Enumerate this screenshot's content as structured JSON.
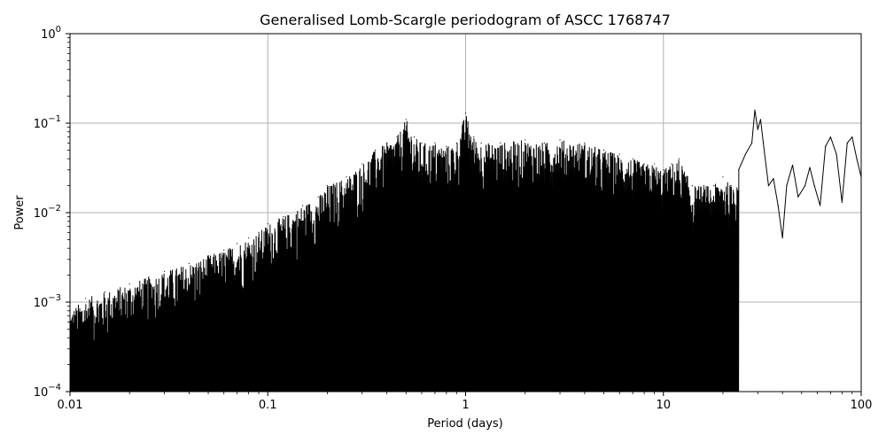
{
  "chart_data": {
    "type": "line",
    "title": "Generalised Lomb-Scargle periodogram of ASCC 1768747",
    "xlabel": "Period (days)",
    "ylabel": "Power",
    "xscale": "log",
    "yscale": "log",
    "xlim": [
      0.01,
      100
    ],
    "ylim": [
      0.0001,
      1
    ],
    "grid": true,
    "line_color": "#000000",
    "grid_color": "#b0b0b0",
    "x_tick_labels": [
      "0.01",
      "0.1",
      "1",
      "10",
      "100"
    ],
    "y_tick_labels": [
      {
        "base": "10",
        "exp": "−4"
      },
      {
        "base": "10",
        "exp": "−3"
      },
      {
        "base": "10",
        "exp": "−2"
      },
      {
        "base": "10",
        "exp": "−1"
      },
      {
        "base": "10",
        "exp": "0"
      }
    ],
    "series": [
      {
        "points": [
          [
            0.01,
            0.0008
          ],
          [
            0.012,
            0.0011
          ],
          [
            0.015,
            0.0013
          ],
          [
            0.02,
            0.0016
          ],
          [
            0.025,
            0.0019
          ],
          [
            0.03,
            0.0022
          ],
          [
            0.04,
            0.0027
          ],
          [
            0.05,
            0.0033
          ],
          [
            0.06,
            0.0038
          ],
          [
            0.07,
            0.0045
          ],
          [
            0.08,
            0.0052
          ],
          [
            0.09,
            0.006
          ],
          [
            0.1,
            0.0075
          ],
          [
            0.12,
            0.009
          ],
          [
            0.15,
            0.012
          ],
          [
            0.18,
            0.015
          ],
          [
            0.2,
            0.02
          ],
          [
            0.25,
            0.025
          ],
          [
            0.3,
            0.035
          ],
          [
            0.35,
            0.05
          ],
          [
            0.4,
            0.06
          ],
          [
            0.45,
            0.07
          ],
          [
            0.5,
            0.11
          ],
          [
            0.55,
            0.07
          ],
          [
            0.6,
            0.06
          ],
          [
            0.7,
            0.06
          ],
          [
            0.8,
            0.055
          ],
          [
            0.9,
            0.06
          ],
          [
            1.0,
            0.13
          ],
          [
            1.1,
            0.07
          ],
          [
            1.2,
            0.06
          ],
          [
            1.5,
            0.06
          ],
          [
            2.0,
            0.065
          ],
          [
            2.5,
            0.06
          ],
          [
            3.0,
            0.065
          ],
          [
            4.0,
            0.06
          ],
          [
            5.0,
            0.05
          ],
          [
            6.0,
            0.045
          ],
          [
            7.0,
            0.04
          ],
          [
            8.0,
            0.035
          ],
          [
            9.0,
            0.035
          ],
          [
            10.0,
            0.03
          ],
          [
            11.0,
            0.035
          ],
          [
            12.0,
            0.04
          ],
          [
            14.0,
            0.02
          ],
          [
            16.0,
            0.02
          ],
          [
            18.0,
            0.02
          ],
          [
            20.0,
            0.025
          ],
          [
            22.0,
            0.02
          ],
          [
            24.0,
            0.03
          ],
          [
            26.0,
            0.045
          ],
          [
            28.0,
            0.06
          ],
          [
            29.0,
            0.14
          ],
          [
            30.0,
            0.085
          ],
          [
            31.0,
            0.11
          ],
          [
            32.0,
            0.06
          ],
          [
            34.0,
            0.02
          ],
          [
            36.0,
            0.024
          ],
          [
            38.0,
            0.012
          ],
          [
            40.0,
            0.0052
          ],
          [
            42.0,
            0.02
          ],
          [
            45.0,
            0.034
          ],
          [
            48.0,
            0.015
          ],
          [
            52.0,
            0.02
          ],
          [
            55.0,
            0.032
          ],
          [
            58.0,
            0.02
          ],
          [
            62.0,
            0.012
          ],
          [
            66.0,
            0.055
          ],
          [
            70.0,
            0.07
          ],
          [
            75.0,
            0.045
          ],
          [
            80.0,
            0.013
          ],
          [
            85.0,
            0.06
          ],
          [
            90.0,
            0.07
          ],
          [
            95.0,
            0.04
          ],
          [
            100.0,
            0.025
          ]
        ]
      }
    ]
  }
}
